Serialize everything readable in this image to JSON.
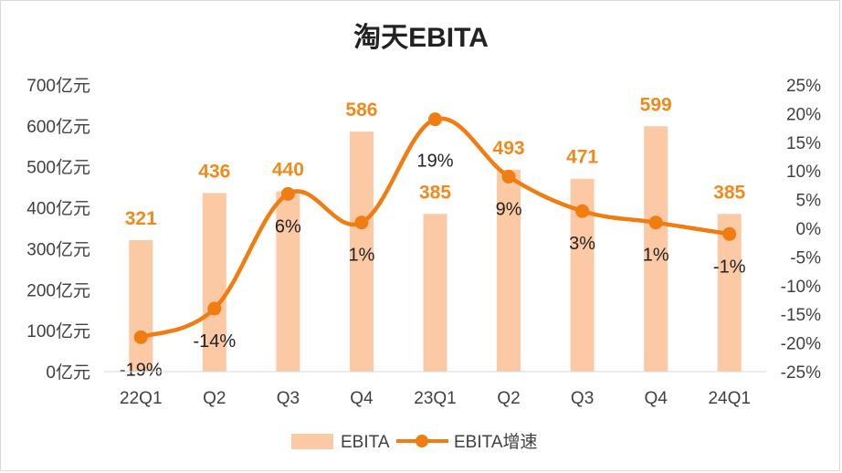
{
  "chart_data": {
    "type": "bar",
    "title": "淘天EBITA",
    "categories": [
      "22Q1",
      "Q2",
      "Q3",
      "Q4",
      "23Q1",
      "Q2",
      "Q3",
      "Q4",
      "24Q1"
    ],
    "series": [
      {
        "name": "EBITA",
        "type": "bar",
        "axis": "left",
        "values": [
          321,
          436,
          440,
          586,
          385,
          493,
          471,
          599,
          385
        ],
        "labels": [
          "321",
          "436",
          "440",
          "586",
          "385",
          "493",
          "471",
          "599",
          "385"
        ],
        "color": "#fbc9a3"
      },
      {
        "name": "EBITA增速",
        "type": "line",
        "axis": "right",
        "values": [
          -19,
          -14,
          6,
          1,
          19,
          9,
          3,
          1,
          -1
        ],
        "labels": [
          "-19%",
          "-14%",
          "6%",
          "1%",
          "19%",
          "9%",
          "3%",
          "1%",
          "-1%"
        ],
        "color": "#f07d12"
      }
    ],
    "y_left": {
      "ylim": [
        0,
        700
      ],
      "ticks": [
        0,
        100,
        200,
        300,
        400,
        500,
        600,
        700
      ],
      "tick_labels": [
        "0亿元",
        "100亿元",
        "200亿元",
        "300亿元",
        "400亿元",
        "500亿元",
        "600亿元",
        "700亿元"
      ]
    },
    "y_right": {
      "ylim": [
        -25,
        25
      ],
      "ticks": [
        -25,
        -20,
        -15,
        -10,
        -5,
        0,
        5,
        10,
        15,
        20,
        25
      ],
      "tick_labels": [
        "-25%",
        "-20%",
        "-15%",
        "-10%",
        "-5%",
        "0%",
        "5%",
        "10%",
        "15%",
        "20%",
        "25%"
      ]
    },
    "bar_label_color": "#f08a1c",
    "grid": false,
    "legend": "bottom"
  }
}
